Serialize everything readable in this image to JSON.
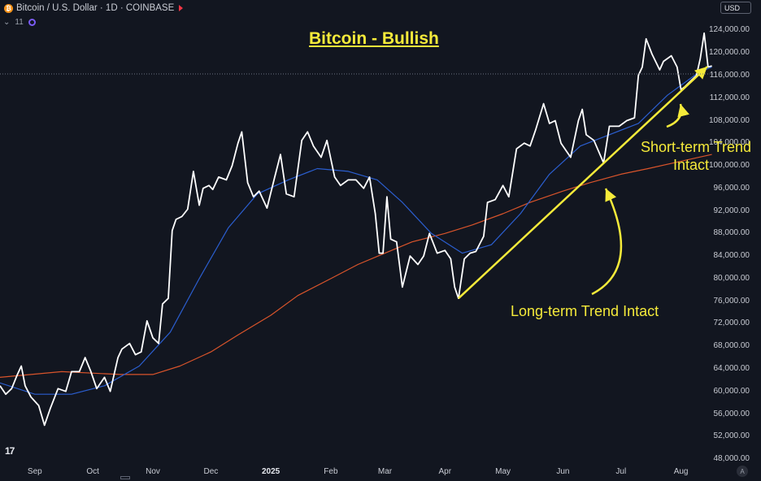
{
  "header": {
    "symbol_title": "Bitcoin / U.S. Dollar · 1D · COINBASE",
    "indicator_count": "11",
    "currency": "USD",
    "coin_icon": "bitcoin-icon",
    "flag_icon": "flag-icon"
  },
  "colors": {
    "background": "#121620",
    "price_line": "#ffffff",
    "ma_short": "#2b5ecf",
    "ma_long": "#d9542b",
    "annotation": "#f5ea3a"
  },
  "chart_data": {
    "type": "line",
    "title": "Bitcoin - Bullish",
    "xlabel": "",
    "ylabel": "",
    "x_ticks": [
      "Sep",
      "Oct",
      "Nov",
      "Dec",
      "2025",
      "Feb",
      "Mar",
      "Apr",
      "May",
      "Jun",
      "Jul",
      "Aug"
    ],
    "y_ticks": [
      "124,000.00",
      "120,000.00",
      "116,000.00",
      "112,000.00",
      "108,000.00",
      "104,000.00",
      "100,000.00",
      "96,000.00",
      "92,000.00",
      "88,000.00",
      "84,000.00",
      "80,000.00",
      "76,000.00",
      "72,000.00",
      "68,000.00",
      "64,000.00",
      "60,000.00",
      "56,000.00",
      "52,000.00",
      "48,000.00"
    ],
    "ylim": [
      47000,
      126500
    ],
    "xlim": [
      "2024-08-14",
      "2025-08-18"
    ],
    "grid": false,
    "series": [
      {
        "key": "price",
        "color": "#ffffff",
        "points": [
          [
            "2024-08-14",
            61000
          ],
          [
            "2024-08-17",
            59500
          ],
          [
            "2024-08-20",
            60500
          ],
          [
            "2024-08-23",
            63000
          ],
          [
            "2024-08-25",
            64500
          ],
          [
            "2024-08-27",
            61000
          ],
          [
            "2024-08-30",
            59000
          ],
          [
            "2024-09-03",
            57500
          ],
          [
            "2024-09-06",
            54000
          ],
          [
            "2024-09-09",
            57000
          ],
          [
            "2024-09-13",
            60500
          ],
          [
            "2024-09-17",
            60000
          ],
          [
            "2024-09-20",
            63500
          ],
          [
            "2024-09-24",
            63500
          ],
          [
            "2024-09-27",
            66000
          ],
          [
            "2024-09-30",
            63500
          ],
          [
            "2024-10-03",
            60500
          ],
          [
            "2024-10-07",
            62500
          ],
          [
            "2024-10-10",
            60000
          ],
          [
            "2024-10-14",
            66000
          ],
          [
            "2024-10-16",
            67500
          ],
          [
            "2024-10-20",
            68500
          ],
          [
            "2024-10-23",
            66500
          ],
          [
            "2024-10-26",
            67000
          ],
          [
            "2024-10-29",
            72500
          ],
          [
            "2024-11-01",
            69500
          ],
          [
            "2024-11-04",
            68500
          ],
          [
            "2024-11-06",
            75500
          ],
          [
            "2024-11-09",
            76500
          ],
          [
            "2024-11-11",
            88500
          ],
          [
            "2024-11-13",
            90500
          ],
          [
            "2024-11-16",
            91000
          ],
          [
            "2024-11-19",
            92300
          ],
          [
            "2024-11-22",
            99000
          ],
          [
            "2024-11-25",
            93000
          ],
          [
            "2024-11-27",
            96000
          ],
          [
            "2024-11-30",
            96500
          ],
          [
            "2024-12-02",
            95800
          ],
          [
            "2024-12-05",
            98000
          ],
          [
            "2024-12-09",
            97500
          ],
          [
            "2024-12-12",
            100000
          ],
          [
            "2024-12-15",
            104000
          ],
          [
            "2024-12-17",
            106000
          ],
          [
            "2024-12-20",
            97000
          ],
          [
            "2024-12-23",
            94500
          ],
          [
            "2024-12-26",
            95500
          ],
          [
            "2024-12-30",
            92500
          ],
          [
            "2025-01-03",
            98000
          ],
          [
            "2025-01-06",
            102000
          ],
          [
            "2025-01-09",
            95000
          ],
          [
            "2025-01-13",
            94500
          ],
          [
            "2025-01-17",
            104500
          ],
          [
            "2025-01-20",
            106000
          ],
          [
            "2025-01-23",
            103500
          ],
          [
            "2025-01-27",
            101500
          ],
          [
            "2025-01-30",
            104500
          ],
          [
            "2025-02-03",
            98000
          ],
          [
            "2025-02-06",
            96500
          ],
          [
            "2025-02-10",
            97500
          ],
          [
            "2025-02-14",
            97500
          ],
          [
            "2025-02-18",
            96000
          ],
          [
            "2025-02-21",
            98000
          ],
          [
            "2025-02-24",
            91500
          ],
          [
            "2025-02-26",
            84500
          ],
          [
            "2025-02-28",
            84500
          ],
          [
            "2025-03-02",
            94500
          ],
          [
            "2025-03-04",
            87000
          ],
          [
            "2025-03-07",
            86500
          ],
          [
            "2025-03-10",
            78500
          ],
          [
            "2025-03-14",
            84000
          ],
          [
            "2025-03-18",
            82500
          ],
          [
            "2025-03-21",
            84000
          ],
          [
            "2025-03-24",
            88000
          ],
          [
            "2025-03-28",
            84500
          ],
          [
            "2025-04-01",
            85000
          ],
          [
            "2025-04-04",
            83500
          ],
          [
            "2025-04-06",
            78500
          ],
          [
            "2025-04-08",
            76500
          ],
          [
            "2025-04-11",
            83500
          ],
          [
            "2025-04-14",
            84500
          ],
          [
            "2025-04-17",
            84800
          ],
          [
            "2025-04-21",
            87500
          ],
          [
            "2025-04-23",
            93500
          ],
          [
            "2025-04-27",
            94000
          ],
          [
            "2025-05-01",
            96500
          ],
          [
            "2025-05-04",
            94500
          ],
          [
            "2025-05-08",
            103000
          ],
          [
            "2025-05-12",
            104000
          ],
          [
            "2025-05-15",
            103500
          ],
          [
            "2025-05-18",
            106500
          ],
          [
            "2025-05-22",
            111000
          ],
          [
            "2025-05-25",
            107500
          ],
          [
            "2025-05-28",
            108000
          ],
          [
            "2025-05-31",
            104000
          ],
          [
            "2025-06-05",
            101500
          ],
          [
            "2025-06-09",
            108000
          ],
          [
            "2025-06-11",
            110000
          ],
          [
            "2025-06-13",
            105500
          ],
          [
            "2025-06-17",
            104500
          ],
          [
            "2025-06-22",
            100500
          ],
          [
            "2025-06-25",
            107000
          ],
          [
            "2025-06-30",
            107000
          ],
          [
            "2025-07-04",
            108000
          ],
          [
            "2025-07-08",
            108500
          ],
          [
            "2025-07-10",
            116000
          ],
          [
            "2025-07-12",
            117500
          ],
          [
            "2025-07-14",
            122500
          ],
          [
            "2025-07-17",
            119800
          ],
          [
            "2025-07-21",
            117000
          ],
          [
            "2025-07-23",
            118500
          ],
          [
            "2025-07-27",
            119500
          ],
          [
            "2025-07-30",
            117500
          ],
          [
            "2025-08-01",
            113500
          ],
          [
            "2025-08-03",
            114000
          ],
          [
            "2025-08-06",
            115000
          ],
          [
            "2025-08-09",
            116000
          ],
          [
            "2025-08-11",
            119000
          ],
          [
            "2025-08-13",
            123500
          ],
          [
            "2025-08-15",
            117500
          ],
          [
            "2025-08-17",
            117700
          ]
        ]
      },
      {
        "key": "ma_50",
        "color": "#2b5ecf",
        "points": [
          [
            "2024-08-14",
            61500
          ],
          [
            "2024-09-01",
            59500
          ],
          [
            "2024-09-20",
            59500
          ],
          [
            "2024-10-07",
            61000
          ],
          [
            "2024-10-25",
            64500
          ],
          [
            "2024-11-10",
            70500
          ],
          [
            "2024-11-25",
            80000
          ],
          [
            "2024-12-10",
            89000
          ],
          [
            "2024-12-25",
            95000
          ],
          [
            "2025-01-10",
            97500
          ],
          [
            "2025-01-25",
            99500
          ],
          [
            "2025-02-10",
            99000
          ],
          [
            "2025-02-25",
            97500
          ],
          [
            "2025-03-10",
            93500
          ],
          [
            "2025-03-25",
            88000
          ],
          [
            "2025-04-10",
            84500
          ],
          [
            "2025-04-25",
            86000
          ],
          [
            "2025-05-10",
            91500
          ],
          [
            "2025-05-25",
            98500
          ],
          [
            "2025-06-10",
            103500
          ],
          [
            "2025-06-25",
            105500
          ],
          [
            "2025-07-10",
            107500
          ],
          [
            "2025-07-25",
            112500
          ],
          [
            "2025-08-10",
            116500
          ],
          [
            "2025-08-17",
            117500
          ]
        ]
      },
      {
        "key": "ma_200",
        "color": "#d9542b",
        "points": [
          [
            "2024-08-14",
            62500
          ],
          [
            "2024-09-15",
            63500
          ],
          [
            "2024-10-15",
            63000
          ],
          [
            "2024-11-01",
            63000
          ],
          [
            "2024-11-15",
            64500
          ],
          [
            "2024-12-01",
            67000
          ],
          [
            "2024-12-15",
            70000
          ],
          [
            "2025-01-01",
            73500
          ],
          [
            "2025-01-15",
            77000
          ],
          [
            "2025-02-01",
            80000
          ],
          [
            "2025-02-15",
            82500
          ],
          [
            "2025-03-01",
            84500
          ],
          [
            "2025-03-15",
            86500
          ],
          [
            "2025-04-01",
            88000
          ],
          [
            "2025-04-15",
            89500
          ],
          [
            "2025-05-01",
            91500
          ],
          [
            "2025-05-15",
            93500
          ],
          [
            "2025-06-01",
            95500
          ],
          [
            "2025-06-15",
            97000
          ],
          [
            "2025-07-01",
            98500
          ],
          [
            "2025-07-15",
            99500
          ],
          [
            "2025-08-01",
            100800
          ],
          [
            "2025-08-17",
            102000
          ]
        ]
      }
    ],
    "trendline": [
      [
        "2025-04-08",
        76500
      ],
      [
        "2025-08-17",
        117500
      ]
    ],
    "annotations": {
      "short_term_line1": "Short-term Trend",
      "short_term_line2": "Intact",
      "long_term": "Long-term Trend Intact"
    }
  }
}
